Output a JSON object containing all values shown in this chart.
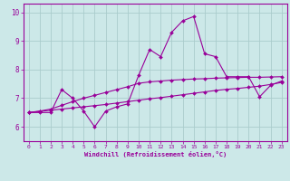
{
  "xlabel": "Windchill (Refroidissement éolien,°C)",
  "bg_color": "#cce8e8",
  "line_color": "#990099",
  "grid_color": "#aacccc",
  "xlim": [
    -0.5,
    23.5
  ],
  "ylim": [
    5.5,
    10.3
  ],
  "yticks": [
    6,
    7,
    8,
    9,
    10
  ],
  "xticks": [
    0,
    1,
    2,
    3,
    4,
    5,
    6,
    7,
    8,
    9,
    10,
    11,
    12,
    13,
    14,
    15,
    16,
    17,
    18,
    19,
    20,
    21,
    22,
    23
  ],
  "line1_x": [
    0,
    1,
    2,
    3,
    4,
    5,
    6,
    7,
    8,
    9,
    10,
    11,
    12,
    13,
    14,
    15,
    16,
    17,
    18,
    19,
    20,
    21,
    22,
    23
  ],
  "line1_y": [
    6.5,
    6.5,
    6.5,
    7.3,
    7.0,
    6.55,
    6.0,
    6.55,
    6.7,
    6.8,
    7.8,
    8.7,
    8.45,
    9.3,
    9.7,
    9.85,
    8.55,
    8.45,
    7.75,
    7.75,
    7.75,
    7.05,
    7.45,
    7.6
  ],
  "line2_x": [
    0,
    1,
    2,
    3,
    4,
    5,
    6,
    7,
    8,
    9,
    10,
    11,
    12,
    13,
    14,
    15,
    16,
    17,
    18,
    19,
    20,
    21,
    22,
    23
  ],
  "line2_y": [
    6.5,
    6.55,
    6.62,
    6.75,
    6.88,
    7.0,
    7.1,
    7.2,
    7.3,
    7.4,
    7.52,
    7.57,
    7.6,
    7.63,
    7.65,
    7.67,
    7.68,
    7.7,
    7.71,
    7.72,
    7.73,
    7.73,
    7.74,
    7.75
  ],
  "line3_x": [
    0,
    1,
    2,
    3,
    4,
    5,
    6,
    7,
    8,
    9,
    10,
    11,
    12,
    13,
    14,
    15,
    16,
    17,
    18,
    19,
    20,
    21,
    22,
    23
  ],
  "line3_y": [
    6.5,
    6.54,
    6.58,
    6.62,
    6.66,
    6.7,
    6.74,
    6.78,
    6.83,
    6.88,
    6.93,
    6.98,
    7.02,
    7.07,
    7.12,
    7.17,
    7.22,
    7.27,
    7.31,
    7.34,
    7.38,
    7.42,
    7.48,
    7.55
  ]
}
